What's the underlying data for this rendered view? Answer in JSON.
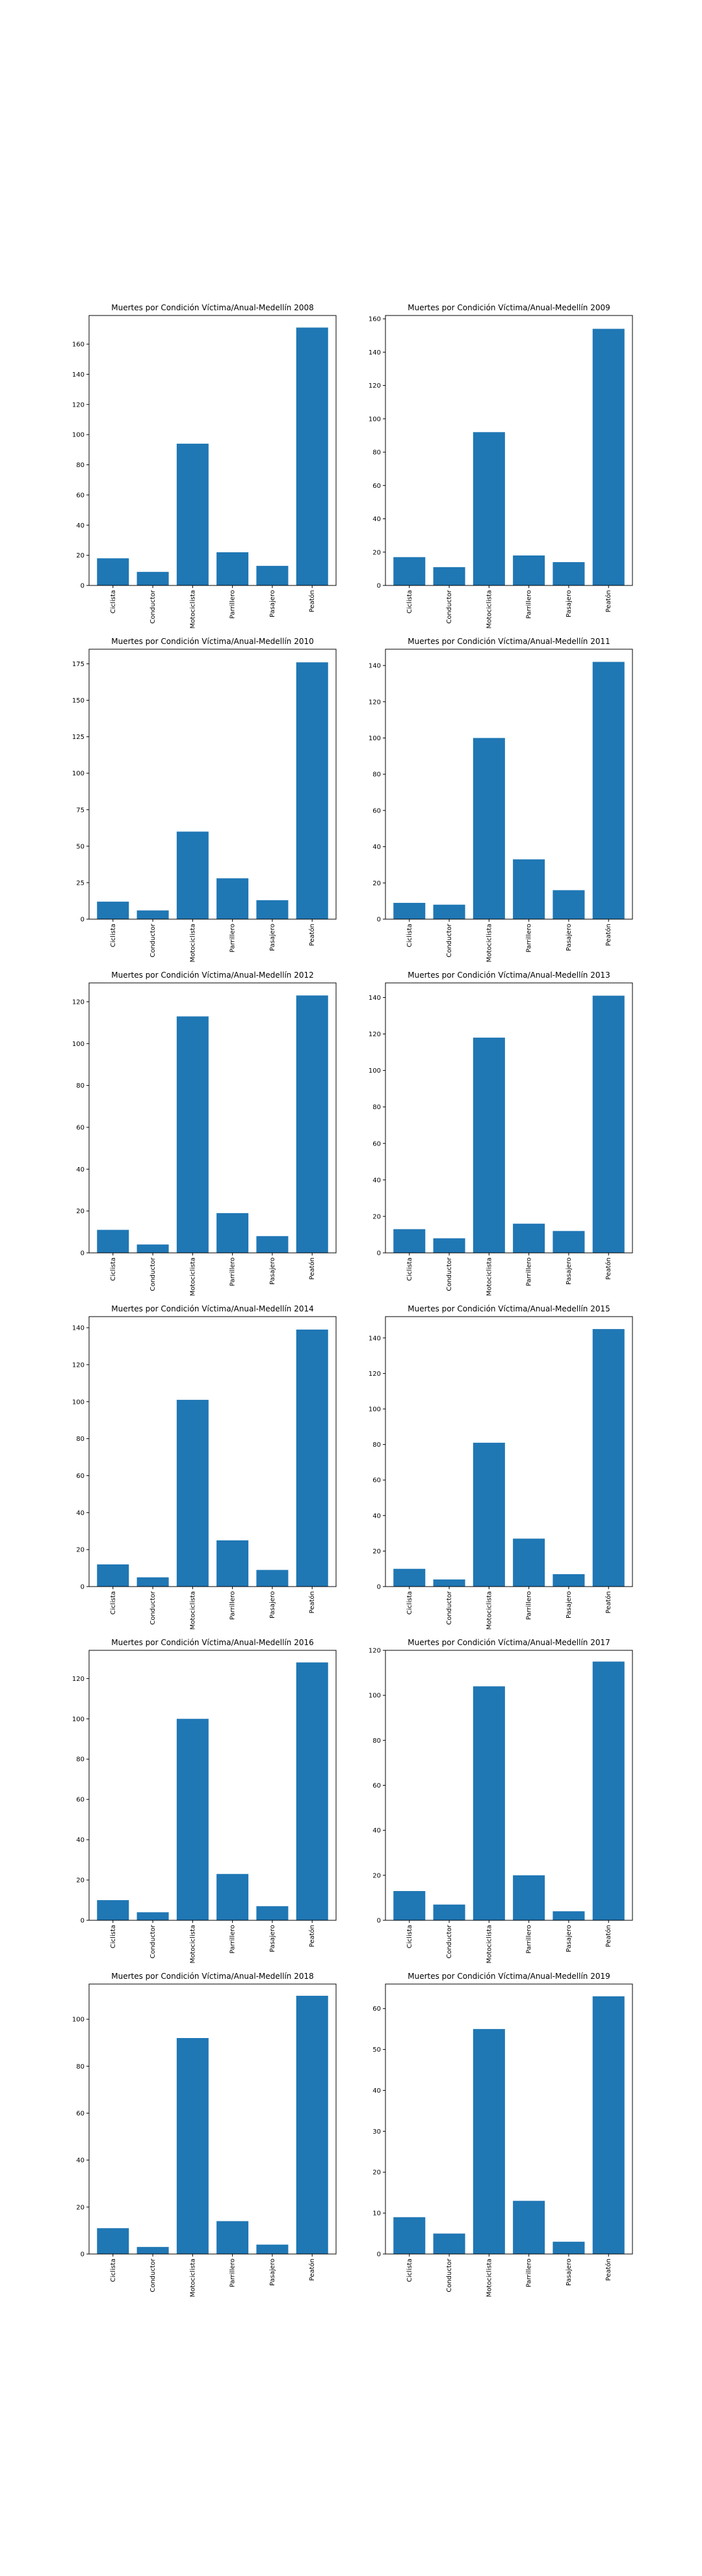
{
  "chart_data": [
    {
      "type": "bar",
      "title": "Muertes por Condición Víctima/Anual-Medellín 2008",
      "categories": [
        "Ciclista",
        "Conductor",
        "Motociclista",
        "Parrillero",
        "Pasajero",
        "Peatón"
      ],
      "values": [
        18,
        9,
        94,
        22,
        13,
        171
      ],
      "ylim": [
        0,
        179
      ],
      "yticks": [
        0,
        20,
        40,
        60,
        80,
        100,
        120,
        140,
        160
      ],
      "xlabel": "",
      "ylabel": ""
    },
    {
      "type": "bar",
      "title": "Muertes por Condición Víctima/Anual-Medellín 2009",
      "categories": [
        "Ciclista",
        "Conductor",
        "Motociclista",
        "Parrillero",
        "Pasajero",
        "Peatón"
      ],
      "values": [
        17,
        11,
        92,
        18,
        14,
        154
      ],
      "ylim": [
        0,
        162
      ],
      "yticks": [
        0,
        20,
        40,
        60,
        80,
        100,
        120,
        140,
        160
      ],
      "xlabel": "",
      "ylabel": ""
    },
    {
      "type": "bar",
      "title": "Muertes por Condición Víctima/Anual-Medellín 2010",
      "categories": [
        "Ciclista",
        "Conductor",
        "Motociclista",
        "Parrillero",
        "Pasajero",
        "Peatón"
      ],
      "values": [
        12,
        6,
        60,
        28,
        13,
        176
      ],
      "ylim": [
        0,
        185
      ],
      "yticks": [
        0,
        25,
        50,
        75,
        100,
        125,
        150,
        175
      ],
      "xlabel": "",
      "ylabel": ""
    },
    {
      "type": "bar",
      "title": "Muertes por Condición Víctima/Anual-Medellín 2011",
      "categories": [
        "Ciclista",
        "Conductor",
        "Motociclista",
        "Parrillero",
        "Pasajero",
        "Peatón"
      ],
      "values": [
        9,
        8,
        100,
        33,
        16,
        142
      ],
      "ylim": [
        0,
        149
      ],
      "yticks": [
        0,
        20,
        40,
        60,
        80,
        100,
        120,
        140
      ],
      "xlabel": "",
      "ylabel": ""
    },
    {
      "type": "bar",
      "title": "Muertes por Condición Víctima/Anual-Medellín 2012",
      "categories": [
        "Ciclista",
        "Conductor",
        "Motociclista",
        "Parrillero",
        "Pasajero",
        "Peatón"
      ],
      "values": [
        11,
        4,
        113,
        19,
        8,
        123
      ],
      "ylim": [
        0,
        129
      ],
      "yticks": [
        0,
        20,
        40,
        60,
        80,
        100,
        120
      ],
      "xlabel": "",
      "ylabel": ""
    },
    {
      "type": "bar",
      "title": "Muertes por Condición Víctima/Anual-Medellín 2013",
      "categories": [
        "Ciclista",
        "Conductor",
        "Motociclista",
        "Parrillero",
        "Pasajero",
        "Peatón"
      ],
      "values": [
        13,
        8,
        118,
        16,
        12,
        141
      ],
      "ylim": [
        0,
        148
      ],
      "yticks": [
        0,
        20,
        40,
        60,
        80,
        100,
        120,
        140
      ],
      "xlabel": "",
      "ylabel": ""
    },
    {
      "type": "bar",
      "title": "Muertes por Condición Víctima/Anual-Medellín 2014",
      "categories": [
        "Ciclista",
        "Conductor",
        "Motociclista",
        "Parrillero",
        "Pasajero",
        "Peatón"
      ],
      "values": [
        12,
        5,
        101,
        25,
        9,
        139
      ],
      "ylim": [
        0,
        146
      ],
      "yticks": [
        0,
        20,
        40,
        60,
        80,
        100,
        120,
        140
      ],
      "xlabel": "",
      "ylabel": ""
    },
    {
      "type": "bar",
      "title": "Muertes por Condición Víctima/Anual-Medellín 2015",
      "categories": [
        "Ciclista",
        "Conductor",
        "Motociclista",
        "Parrillero",
        "Pasajero",
        "Peatón"
      ],
      "values": [
        10,
        4,
        81,
        27,
        7,
        145
      ],
      "ylim": [
        0,
        152
      ],
      "yticks": [
        0,
        20,
        40,
        60,
        80,
        100,
        120,
        140
      ],
      "xlabel": "",
      "ylabel": ""
    },
    {
      "type": "bar",
      "title": "Muertes por Condición Víctima/Anual-Medellín 2016",
      "categories": [
        "Ciclista",
        "Conductor",
        "Motociclista",
        "Parrillero",
        "Pasajero",
        "Peatón"
      ],
      "values": [
        10,
        4,
        100,
        23,
        7,
        128
      ],
      "ylim": [
        0,
        134
      ],
      "yticks": [
        0,
        20,
        40,
        60,
        80,
        100,
        120
      ],
      "xlabel": "",
      "ylabel": ""
    },
    {
      "type": "bar",
      "title": "Muertes por Condición Víctima/Anual-Medellín 2017",
      "categories": [
        "Ciclista",
        "Conductor",
        "Motociclista",
        "Parrillero",
        "Pasajero",
        "Peatón"
      ],
      "values": [
        13,
        7,
        104,
        20,
        4,
        115
      ],
      "ylim": [
        0,
        120
      ],
      "yticks": [
        0,
        20,
        40,
        60,
        80,
        100,
        120
      ],
      "xlabel": "",
      "ylabel": ""
    },
    {
      "type": "bar",
      "title": "Muertes por Condición Víctima/Anual-Medellín 2018",
      "categories": [
        "Ciclista",
        "Conductor",
        "Motociclista",
        "Parrillero",
        "Pasajero",
        "Peatón"
      ],
      "values": [
        11,
        3,
        92,
        14,
        4,
        110
      ],
      "ylim": [
        0,
        115
      ],
      "yticks": [
        0,
        20,
        40,
        60,
        80,
        100
      ],
      "xlabel": "",
      "ylabel": ""
    },
    {
      "type": "bar",
      "title": "Muertes por Condición Víctima/Anual-Medellín 2019",
      "categories": [
        "Ciclista",
        "Conductor",
        "Motociclista",
        "Parrillero",
        "Pasajero",
        "Peatón"
      ],
      "values": [
        9,
        5,
        55,
        13,
        3,
        63
      ],
      "ylim": [
        0,
        66
      ],
      "yticks": [
        0,
        10,
        20,
        30,
        40,
        50,
        60
      ],
      "xlabel": "",
      "ylabel": ""
    }
  ],
  "colors": {
    "bar": "#1f77b4",
    "background": "#ffffff"
  }
}
